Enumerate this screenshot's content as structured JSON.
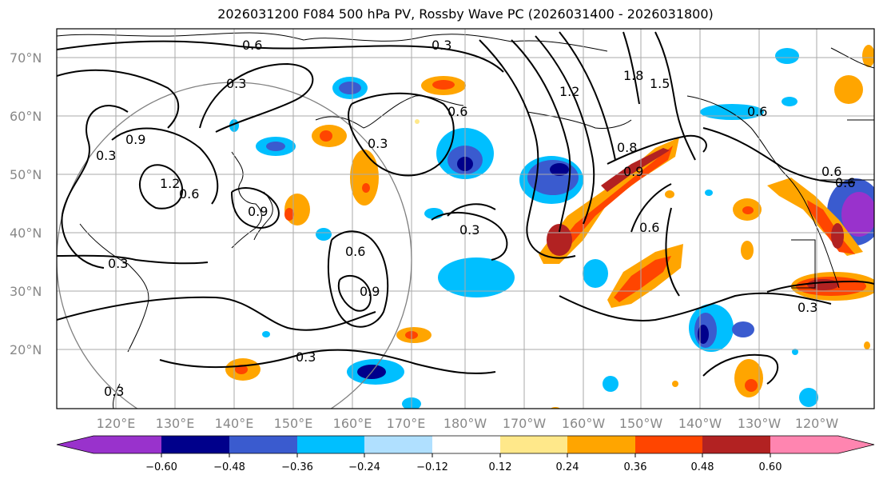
{
  "title": "2026031200 F084 500 hPa PV, Rossby Wave PC (2026031400 - 2026031800)",
  "latitude_labels": [
    "70°N",
    "60°N",
    "50°N",
    "40°N",
    "30°N",
    "20°N"
  ],
  "longitude_labels": [
    "120°E",
    "130°E",
    "140°E",
    "150°E",
    "160°E",
    "170°E",
    "180°W",
    "170°W",
    "160°W",
    "150°W",
    "140°W",
    "130°W",
    "120°W"
  ],
  "colorbar": {
    "tick_labels": [
      "−0.60",
      "−0.48",
      "−0.36",
      "−0.24",
      "−0.12",
      "0.12",
      "0.24",
      "0.36",
      "0.48",
      "0.60"
    ],
    "colors": [
      "#9932cc",
      "#00008b",
      "#3a5bcf",
      "#00bfff",
      "#b0e0ff",
      "#ffffff",
      "#ffe88a",
      "#ffa500",
      "#ff4500",
      "#b22222",
      "#ff85b0"
    ]
  },
  "contour_labels": [
    "0.6",
    "0.3",
    "0.3",
    "0.3",
    "1.8",
    "1.5",
    "1.2",
    "0.9",
    "0.3",
    "0.6",
    "0.6",
    "0.9",
    "0.3",
    "0.6",
    "0.9",
    "0.3",
    "0.3",
    "0.6",
    "0.9",
    "1.2",
    "0.6",
    "0.3",
    "0.8",
    "0.6",
    "0.3",
    "0.6"
  ]
}
